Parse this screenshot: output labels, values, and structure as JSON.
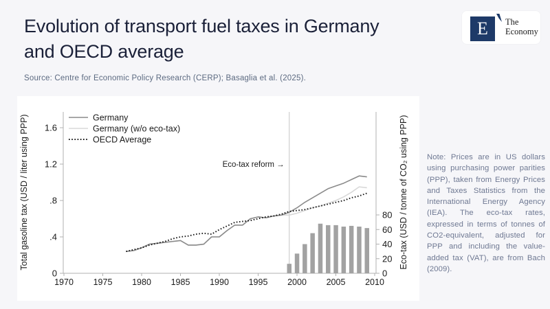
{
  "header": {
    "title_line1": "Evolution of transport fuel taxes in Germany",
    "title_line2": "and OECD average",
    "source": "Source: Centre for Economic Policy Research (CERP); Basaglia et al. (2025)."
  },
  "logo": {
    "mark": "E",
    "name_line1": "The",
    "name_line2": "Economy"
  },
  "note": {
    "text": "Note: Prices are in US dollars using purchasing power parities (PPP), taken from Energy Prices and Taxes Statistics from the International Energy Agency (IEA). The eco-tax rates, expressed in terms of tonnes of CO2-equivalent, adjusted for PPP and including the value-added tax (VAT), are from Bach (2009)."
  },
  "chart_data": {
    "type": "line",
    "title": "",
    "x_axis": {
      "range": [
        1970,
        2010
      ],
      "ticks": [
        1970,
        1975,
        1980,
        1985,
        1990,
        1995,
        2000,
        2005,
        2010
      ]
    },
    "left_axis": {
      "label": "Total gasoline tax (USD / liter using PPP)",
      "range": [
        0,
        1.77
      ],
      "ticks": [
        0,
        0.4,
        0.8,
        1.2,
        1.6
      ],
      "tick_labels": [
        "0",
        ".4",
        ".8",
        "1.2",
        "1.6"
      ]
    },
    "right_axis": {
      "label": "Eco-tax (USD / tonne of CO₂ using PPP)",
      "range": [
        0,
        221
      ],
      "ticks": [
        0,
        20,
        40,
        60,
        80
      ],
      "tick_labels": [
        "0",
        "20",
        "40",
        "60",
        "80"
      ]
    },
    "annotation": {
      "text": "Eco-tax reform →",
      "x": 1999
    },
    "reform_line_x": 1999,
    "colors": {
      "germany": "#8a8a8a",
      "germany_no_ecotax": "#d8d8d8",
      "oecd": "#141414",
      "bars": "#a2a2a2",
      "reform_line": "#cfcfcf",
      "axis": "#b0b0b0",
      "text": "#1a1a1a"
    },
    "legend_position": "top-left",
    "grid": false,
    "series": [
      {
        "name": "Germany",
        "style": "solid",
        "color_key": "germany",
        "axis": "left",
        "x": [
          1978,
          1979,
          1980,
          1981,
          1982,
          1983,
          1984,
          1985,
          1986,
          1987,
          1988,
          1989,
          1990,
          1991,
          1992,
          1993,
          1994,
          1995,
          1996,
          1997,
          1998,
          1999,
          2000,
          2001,
          2002,
          2003,
          2004,
          2005,
          2006,
          2007,
          2008,
          2009
        ],
        "values": [
          0.24,
          0.25,
          0.28,
          0.32,
          0.33,
          0.34,
          0.35,
          0.36,
          0.31,
          0.31,
          0.32,
          0.4,
          0.4,
          0.47,
          0.53,
          0.53,
          0.6,
          0.62,
          0.61,
          0.63,
          0.64,
          0.67,
          0.72,
          0.78,
          0.83,
          0.88,
          0.93,
          0.96,
          0.99,
          1.03,
          1.07,
          1.06
        ]
      },
      {
        "name": "Germany (w/o eco-tax)",
        "style": "solid",
        "color_key": "germany_no_ecotax",
        "axis": "left",
        "x": [
          1978,
          1979,
          1980,
          1981,
          1982,
          1983,
          1984,
          1985,
          1986,
          1987,
          1988,
          1989,
          1990,
          1991,
          1992,
          1993,
          1994,
          1995,
          1996,
          1997,
          1998,
          1999,
          2000,
          2001,
          2002,
          2003,
          2004,
          2005,
          2006,
          2007,
          2008,
          2009
        ],
        "values": [
          0.24,
          0.25,
          0.28,
          0.32,
          0.33,
          0.34,
          0.35,
          0.36,
          0.31,
          0.31,
          0.32,
          0.4,
          0.4,
          0.47,
          0.53,
          0.53,
          0.6,
          0.62,
          0.61,
          0.63,
          0.64,
          0.64,
          0.66,
          0.69,
          0.72,
          0.74,
          0.77,
          0.8,
          0.84,
          0.89,
          0.95,
          0.94
        ]
      },
      {
        "name": "OECD Average",
        "style": "dotted",
        "color_key": "oecd",
        "axis": "left",
        "x": [
          1978,
          1979,
          1980,
          1981,
          1982,
          1983,
          1984,
          1985,
          1986,
          1987,
          1988,
          1989,
          1990,
          1991,
          1992,
          1993,
          1994,
          1995,
          1996,
          1997,
          1998,
          1999,
          2000,
          2001,
          2002,
          2003,
          2004,
          2005,
          2006,
          2007,
          2008,
          2009
        ],
        "values": [
          0.24,
          0.26,
          0.28,
          0.31,
          0.33,
          0.35,
          0.38,
          0.4,
          0.41,
          0.43,
          0.44,
          0.43,
          0.48,
          0.52,
          0.56,
          0.57,
          0.58,
          0.6,
          0.62,
          0.63,
          0.65,
          0.68,
          0.69,
          0.7,
          0.72,
          0.74,
          0.76,
          0.78,
          0.8,
          0.83,
          0.85,
          0.88
        ]
      }
    ],
    "bars": {
      "name": "Eco-tax rate",
      "axis": "right",
      "color_key": "bars",
      "x": [
        1999,
        2000,
        2001,
        2002,
        2003,
        2004,
        2005,
        2006,
        2007,
        2008,
        2009
      ],
      "values": [
        13,
        27,
        40,
        55,
        68,
        66,
        66,
        64,
        65,
        64,
        62
      ]
    }
  }
}
